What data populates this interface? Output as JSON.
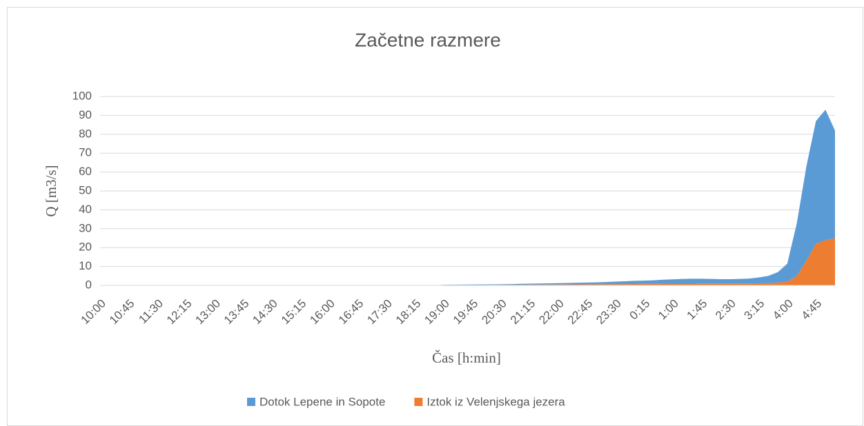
{
  "chart_data": {
    "type": "stacked-area",
    "title": "Začetne razmere",
    "x_label": "Čas [h:min]",
    "y_label": "Q [m3/s]",
    "categories": [
      "10:00",
      null,
      null,
      "10:45",
      null,
      null,
      "11:30",
      null,
      null,
      "12:15",
      null,
      null,
      "13:00",
      null,
      null,
      "13:45",
      null,
      null,
      "14:30",
      null,
      null,
      "15:15",
      null,
      null,
      "16:00",
      null,
      null,
      "16:45",
      null,
      null,
      "17:30",
      null,
      null,
      "18:15",
      null,
      null,
      "19:00",
      null,
      null,
      "19:45",
      null,
      null,
      "20:30",
      null,
      null,
      "21:15",
      null,
      null,
      "22:00",
      null,
      null,
      "22:45",
      null,
      null,
      "23:30",
      null,
      null,
      "0:15",
      null,
      null,
      "1:00",
      null,
      null,
      "1:45",
      null,
      null,
      "2:30",
      null,
      null,
      "3:15",
      null,
      null,
      "4:00",
      null,
      null,
      "4:45",
      null,
      null
    ],
    "series": [
      {
        "name": "Iztok iz Velenjskega jezera",
        "color": "#ed7d31",
        "values": [
          0,
          0,
          0,
          0,
          0,
          0,
          0,
          0,
          0,
          0,
          0,
          0,
          0,
          0,
          0,
          0,
          0,
          0,
          0,
          0,
          0,
          0,
          0,
          0,
          0,
          0,
          0,
          0,
          0,
          0,
          0,
          0,
          0,
          0,
          0,
          0,
          0.1,
          0.1,
          0.15,
          0.2,
          0.2,
          0.25,
          0.3,
          0.3,
          0.35,
          0.4,
          0.4,
          0.45,
          0.5,
          0.5,
          0.55,
          0.6,
          0.6,
          0.65,
          0.7,
          0.7,
          0.75,
          0.8,
          0.8,
          0.85,
          0.9,
          0.9,
          0.9,
          1,
          1,
          1,
          1,
          1,
          1,
          1.1,
          1.2,
          1.5,
          2,
          5,
          13,
          22,
          24,
          25
        ]
      },
      {
        "name": "Dotok Lepene in Sopote",
        "color": "#5b9bd5",
        "values": [
          0,
          0,
          0,
          0,
          0,
          0,
          0,
          0,
          0,
          0,
          0,
          0,
          0,
          0,
          0,
          0,
          0,
          0,
          0,
          0,
          0,
          0,
          0,
          0,
          0,
          0,
          0,
          0,
          0,
          0,
          0,
          0,
          0,
          0,
          0,
          0,
          0.2,
          0.25,
          0.25,
          0.25,
          0.3,
          0.3,
          0.3,
          0.4,
          0.45,
          0.5,
          0.6,
          0.65,
          0.7,
          0.8,
          0.85,
          0.9,
          1.0,
          1.15,
          1.3,
          1.5,
          1.65,
          1.7,
          1.9,
          2.15,
          2.3,
          2.5,
          2.6,
          2.5,
          2.4,
          2.3,
          2.3,
          2.4,
          2.6,
          3.1,
          3.8,
          5.5,
          9.5,
          28,
          50,
          65,
          69,
          57
        ]
      }
    ],
    "legend_order": [
      1,
      0
    ],
    "ylim": [
      0,
      100
    ],
    "yticks": [
      0,
      10,
      20,
      30,
      40,
      50,
      60,
      70,
      80,
      90,
      100
    ],
    "grid": true
  }
}
